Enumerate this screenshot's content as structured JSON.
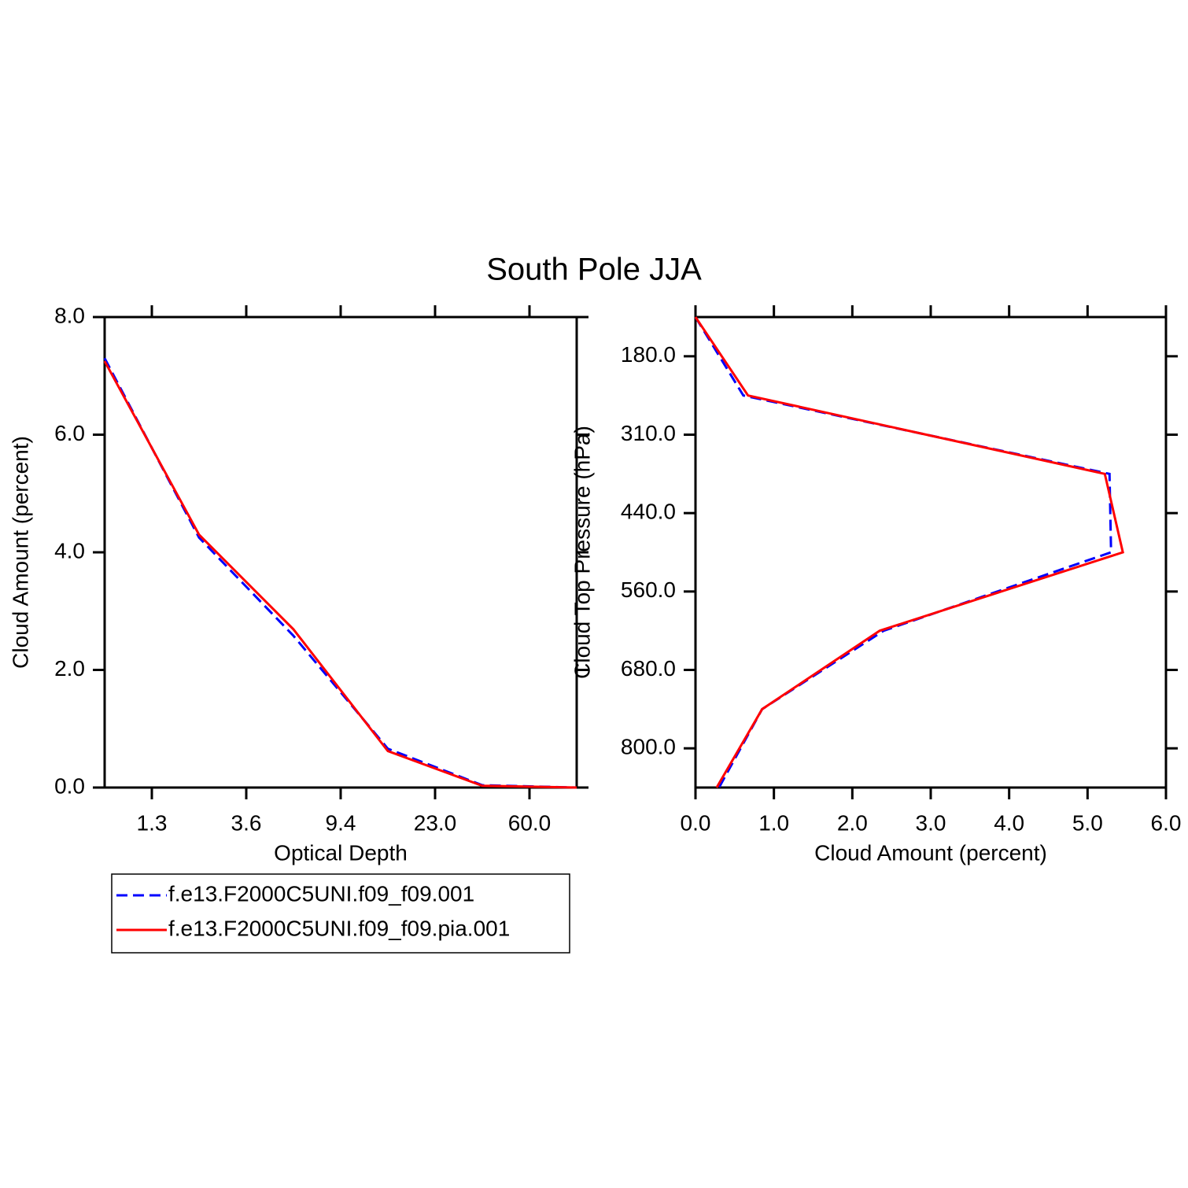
{
  "title": "South Pole JJA",
  "chart_data": [
    {
      "type": "line",
      "xlabel": "Optical Depth",
      "ylabel": "Cloud Amount (percent)",
      "x": [
        0,
        1,
        2,
        3,
        4,
        5
      ],
      "xlim": [
        0,
        5
      ],
      "xticks": [
        {
          "value": 0.5,
          "label": "1.3"
        },
        {
          "value": 1.5,
          "label": "3.6"
        },
        {
          "value": 2.5,
          "label": "9.4"
        },
        {
          "value": 3.5,
          "label": "23.0"
        },
        {
          "value": 4.5,
          "label": "60.0"
        }
      ],
      "ylim": [
        0,
        8
      ],
      "yticks": [
        {
          "value": 0,
          "label": "0.0"
        },
        {
          "value": 2,
          "label": "2.0"
        },
        {
          "value": 4,
          "label": "4.0"
        },
        {
          "value": 6,
          "label": "6.0"
        },
        {
          "value": 8,
          "label": "8.0"
        }
      ],
      "series": [
        {
          "name": "f.e13.F2000C5UNI.f09_f09.001",
          "color": "#0000ff",
          "dashed": true,
          "values": [
            7.3,
            4.25,
            2.58,
            0.66,
            0.04,
            0.0
          ]
        },
        {
          "name": "f.e13.F2000C5UNI.f09_f09.pia.001",
          "color": "#ff0000",
          "dashed": false,
          "values": [
            7.25,
            4.3,
            2.69,
            0.62,
            0.03,
            0.0
          ]
        }
      ]
    },
    {
      "type": "line",
      "xlabel": "Cloud Amount (percent)",
      "ylabel": "Cloud Top Pressure (hPa)",
      "y": [
        0,
        1,
        2,
        3,
        4,
        5,
        6
      ],
      "ylim": [
        6,
        0
      ],
      "yticks": [
        {
          "value": 0.5,
          "label": "180.0"
        },
        {
          "value": 1.5,
          "label": "310.0"
        },
        {
          "value": 2.5,
          "label": "440.0"
        },
        {
          "value": 3.5,
          "label": "560.0"
        },
        {
          "value": 4.5,
          "label": "680.0"
        },
        {
          "value": 5.5,
          "label": "800.0"
        }
      ],
      "xlim": [
        0,
        6
      ],
      "xticks": [
        {
          "value": 0,
          "label": "0.0"
        },
        {
          "value": 1,
          "label": "1.0"
        },
        {
          "value": 2,
          "label": "2.0"
        },
        {
          "value": 3,
          "label": "3.0"
        },
        {
          "value": 4,
          "label": "4.0"
        },
        {
          "value": 5,
          "label": "5.0"
        },
        {
          "value": 6,
          "label": "6.0"
        }
      ],
      "series": [
        {
          "color": "#0000ff",
          "dashed": true,
          "values": [
            0.0,
            0.61,
            5.28,
            5.3,
            2.4,
            0.85,
            0.3
          ]
        },
        {
          "color": "#ff0000",
          "dashed": false,
          "values": [
            0.0,
            0.67,
            5.22,
            5.45,
            2.35,
            0.85,
            0.27
          ]
        }
      ]
    }
  ]
}
